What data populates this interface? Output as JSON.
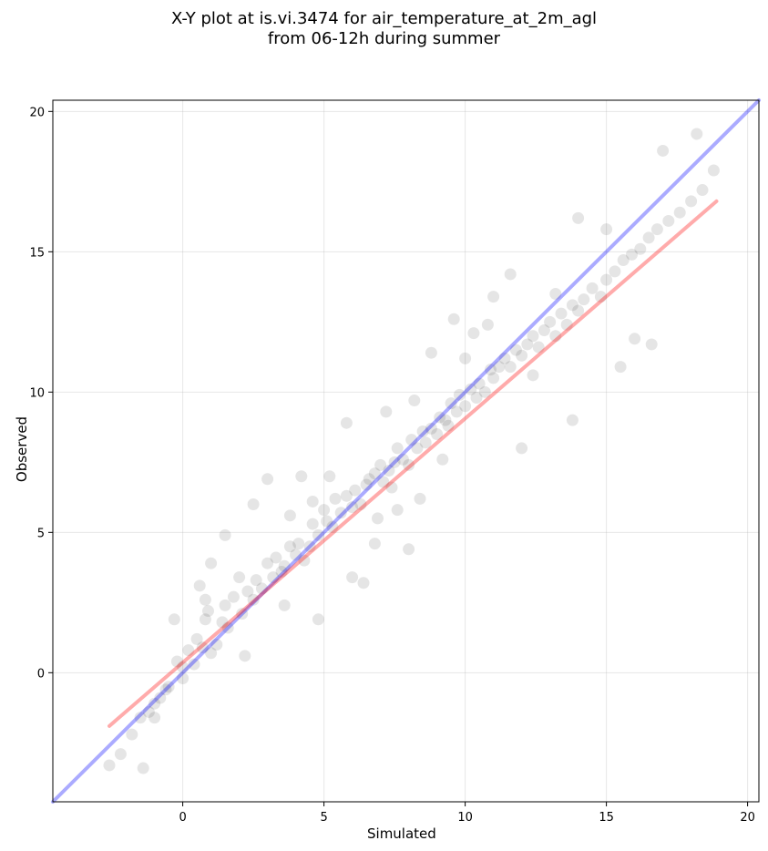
{
  "chart_data": {
    "type": "scatter",
    "title": "X-Y plot at is.vi.3474 for air_temperature_at_2m_agl",
    "subtitle": "from 06-12h during summer",
    "xlabel": "Simulated",
    "ylabel": "Observed",
    "xlim": [
      -4.6,
      20.4
    ],
    "ylim": [
      -4.6,
      20.4
    ],
    "xticks": [
      0,
      5,
      10,
      15,
      20
    ],
    "yticks": [
      0,
      5,
      10,
      15,
      20
    ],
    "grid": true,
    "legend": "none",
    "point_color": "#000000",
    "point_alpha": 0.1,
    "identity_line": {
      "color": "#0000ff",
      "x": [
        -4.6,
        20.4
      ],
      "y": [
        -4.6,
        20.4
      ]
    },
    "regression_line": {
      "color": "#ff0000",
      "x": [
        -2.6,
        18.9
      ],
      "y": [
        -1.9,
        16.8
      ]
    },
    "series": [
      {
        "x": [
          -2.6,
          -2.2,
          -1.8,
          -1.5,
          -1.4,
          -1.2,
          -1.0,
          -0.8,
          -0.6,
          -0.5,
          -0.3,
          -0.2,
          0.0,
          0.2,
          0.4,
          0.5,
          0.6,
          0.7,
          0.8,
          0.9,
          1.0,
          1.0,
          1.2,
          1.4,
          1.5,
          1.6,
          1.8,
          2.0,
          2.1,
          2.3,
          2.5,
          2.6,
          2.8,
          3.0,
          3.2,
          3.3,
          3.5,
          3.6,
          3.8,
          4.0,
          4.1,
          4.3,
          4.5,
          4.6,
          4.8,
          5.0,
          5.1,
          5.3,
          5.4,
          5.6,
          5.8,
          6.0,
          6.1,
          6.3,
          6.5,
          6.6,
          6.8,
          7.0,
          7.1,
          7.3,
          7.5,
          7.6,
          7.8,
          8.0,
          8.1,
          8.3,
          8.5,
          8.6,
          8.8,
          9.0,
          9.1,
          9.3,
          9.5,
          9.7,
          9.8,
          10.0,
          10.2,
          10.4,
          10.5,
          10.7,
          10.9,
          11.0,
          11.2,
          11.4,
          11.6,
          11.8,
          12.0,
          12.2,
          12.4,
          12.6,
          12.8,
          13.0,
          13.2,
          13.4,
          13.6,
          13.8,
          14.0,
          14.2,
          14.5,
          14.8,
          15.0,
          15.3,
          15.6,
          15.9,
          16.2,
          16.5,
          16.8,
          17.2,
          17.6,
          18.0,
          18.4,
          18.8,
          -1.0,
          0.0,
          0.8,
          1.5,
          2.5,
          3.0,
          3.8,
          4.6,
          5.2,
          6.0,
          6.8,
          7.6,
          8.4,
          9.2,
          10.0,
          10.8,
          11.6,
          12.4,
          13.2,
          14.0,
          15.0,
          16.0,
          17.0,
          18.2,
          2.2,
          3.6,
          4.8,
          6.4,
          8.8,
          9.6,
          11.0,
          12.0,
          13.8,
          15.5,
          16.6,
          7.2,
          8.0,
          5.8,
          4.2,
          6.9,
          7.4,
          8.2,
          9.4,
          10.3
        ],
        "y": [
          -3.3,
          -2.9,
          -2.2,
          -1.6,
          -3.4,
          -1.4,
          -1.6,
          -0.9,
          -0.6,
          -0.5,
          1.9,
          0.4,
          0.2,
          0.8,
          0.3,
          1.2,
          3.1,
          0.9,
          1.9,
          2.2,
          0.7,
          3.9,
          1.0,
          1.8,
          2.4,
          1.6,
          2.7,
          3.4,
          2.1,
          2.9,
          2.6,
          3.3,
          3.0,
          3.9,
          3.4,
          4.1,
          3.6,
          3.8,
          4.5,
          4.2,
          4.6,
          4.0,
          4.5,
          5.3,
          4.9,
          5.8,
          5.4,
          5.2,
          6.2,
          5.7,
          6.3,
          5.9,
          6.5,
          6.0,
          6.7,
          6.9,
          7.1,
          7.4,
          6.8,
          7.2,
          7.5,
          8.0,
          7.6,
          7.4,
          8.3,
          8.0,
          8.6,
          8.2,
          8.7,
          8.5,
          9.1,
          9.0,
          9.6,
          9.3,
          9.9,
          9.5,
          10.1,
          9.8,
          10.3,
          10.0,
          10.8,
          10.5,
          10.9,
          11.2,
          10.9,
          11.5,
          11.3,
          11.7,
          12.0,
          11.6,
          12.2,
          12.5,
          12.0,
          12.8,
          12.4,
          13.1,
          12.9,
          13.3,
          13.7,
          13.4,
          14.0,
          14.3,
          14.7,
          14.9,
          15.1,
          15.5,
          15.8,
          16.1,
          16.4,
          16.8,
          17.2,
          17.9,
          -1.1,
          -0.2,
          2.6,
          4.9,
          6.0,
          6.9,
          5.6,
          6.1,
          7.0,
          3.4,
          4.6,
          5.8,
          6.2,
          7.6,
          11.2,
          12.4,
          14.2,
          10.6,
          13.5,
          16.2,
          15.8,
          11.9,
          18.6,
          19.2,
          0.6,
          2.4,
          1.9,
          3.2,
          11.4,
          12.6,
          13.4,
          8.0,
          9.0,
          10.9,
          11.7,
          9.3,
          4.4,
          8.9,
          7.0,
          5.5,
          6.6,
          9.7,
          8.8,
          12.1
        ]
      }
    ]
  }
}
